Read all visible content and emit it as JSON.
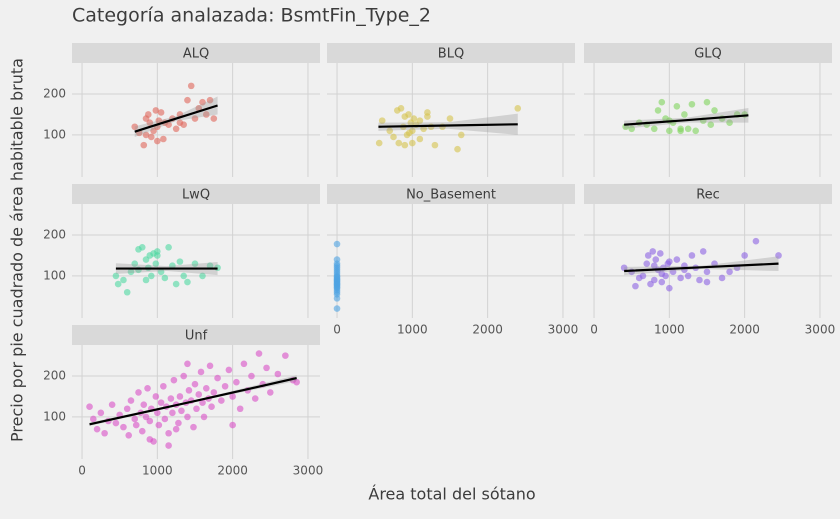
{
  "chart_data": {
    "type": "scatter",
    "title": "Categoría analazada: BsmtFin_Type_2",
    "x_label": "Área total del sótano",
    "y_label": "Precio por pie cuadrado de área habitable bruta",
    "xlim": [
      -133,
      3160
    ],
    "ylim": [
      -3,
      276
    ],
    "xticks": [
      0,
      1000,
      2000,
      3000
    ],
    "yticks": [
      100,
      200
    ],
    "grid": true,
    "panels": [
      {
        "name": "ALQ",
        "color": "#e0665a",
        "x": [
          700,
          760,
          820,
          850,
          880,
          900,
          920,
          950,
          980,
          1000,
          1020,
          1050,
          1080,
          1100,
          1150,
          1200,
          1250,
          1300,
          1350,
          1400,
          1450,
          1500,
          1550,
          1600,
          1650,
          1700,
          1750,
          1000,
          850,
          1300
        ],
        "y": [
          120,
          105,
          75,
          140,
          150,
          130,
          95,
          110,
          160,
          120,
          135,
          155,
          90,
          130,
          125,
          140,
          115,
          150,
          125,
          185,
          220,
          140,
          165,
          180,
          150,
          185,
          140,
          85,
          100,
          130
        ],
        "fit_x": [
          700,
          1250,
          1800
        ],
        "fit_y": [
          108,
          140,
          172
        ],
        "ci_lower": [
          95,
          134,
          150
        ],
        "ci_upper": [
          121,
          146,
          194
        ]
      },
      {
        "name": "BLQ",
        "color": "#d6c34c",
        "x": [
          560,
          600,
          700,
          750,
          800,
          850,
          880,
          900,
          930,
          950,
          980,
          1000,
          1020,
          1050,
          1100,
          1150,
          1200,
          1250,
          1300,
          1400,
          1500,
          1600,
          1650,
          2400,
          900,
          1000,
          1100,
          1200,
          820,
          960
        ],
        "y": [
          80,
          135,
          110,
          95,
          160,
          165,
          120,
          145,
          100,
          150,
          130,
          80,
          140,
          125,
          90,
          115,
          145,
          120,
          75,
          120,
          140,
          65,
          100,
          165,
          75,
          110,
          135,
          155,
          80,
          105
        ],
        "fit_x": [
          550,
          1475,
          2400
        ],
        "fit_y": [
          120,
          123,
          126
        ],
        "ci_lower": [
          110,
          115,
          100
        ],
        "ci_upper": [
          130,
          131,
          152
        ]
      },
      {
        "name": "GLQ",
        "color": "#7ed45c",
        "x": [
          420,
          500,
          600,
          700,
          800,
          900,
          950,
          1000,
          1050,
          1100,
          1150,
          1200,
          1250,
          1300,
          1350,
          1450,
          1500,
          1550,
          1600,
          1700,
          1800,
          1900,
          2000,
          850,
          1000,
          1150
        ],
        "y": [
          120,
          115,
          130,
          125,
          115,
          180,
          140,
          110,
          130,
          170,
          110,
          150,
          115,
          175,
          110,
          135,
          180,
          125,
          160,
          140,
          130,
          150,
          150,
          160,
          135,
          115
        ],
        "fit_x": [
          400,
          1225,
          2050
        ],
        "fit_y": [
          125,
          136,
          148
        ],
        "ci_lower": [
          115,
          130,
          130
        ],
        "ci_upper": [
          135,
          142,
          166
        ]
      },
      {
        "name": "LwQ",
        "color": "#4fd8a2",
        "x": [
          450,
          480,
          550,
          600,
          650,
          700,
          750,
          800,
          850,
          880,
          900,
          920,
          950,
          980,
          1000,
          1050,
          1100,
          1150,
          1200,
          1250,
          1300,
          1350,
          1400,
          1500,
          1600,
          1700,
          1800,
          850,
          1000,
          750
        ],
        "y": [
          100,
          80,
          90,
          60,
          110,
          130,
          165,
          170,
          140,
          120,
          150,
          100,
          155,
          130,
          160,
          110,
          95,
          170,
          125,
          80,
          135,
          100,
          85,
          130,
          100,
          125,
          120,
          90,
          150,
          115
        ],
        "fit_x": [
          450,
          1125,
          1800
        ],
        "fit_y": [
          118,
          118,
          118
        ],
        "ci_lower": [
          105,
          112,
          102
        ],
        "ci_upper": [
          131,
          124,
          134
        ]
      },
      {
        "name": "No_Basement",
        "color": "#4fa3e2",
        "x": [
          0,
          0,
          0,
          0,
          0,
          0,
          0,
          0,
          0,
          0,
          0,
          0,
          0,
          0,
          0,
          0,
          0,
          0,
          0,
          0,
          0,
          0,
          0,
          0,
          0,
          0
        ],
        "y": [
          20,
          45,
          55,
          60,
          65,
          70,
          72,
          75,
          78,
          80,
          82,
          85,
          88,
          90,
          92,
          95,
          98,
          100,
          105,
          110,
          115,
          120,
          125,
          130,
          140,
          178
        ]
      },
      {
        "name": "Rec",
        "color": "#8c62e2",
        "x": [
          400,
          500,
          550,
          600,
          650,
          700,
          720,
          750,
          780,
          800,
          820,
          850,
          880,
          900,
          920,
          950,
          980,
          1000,
          1050,
          1100,
          1150,
          1200,
          1250,
          1300,
          1350,
          1400,
          1450,
          1500,
          1600,
          1700,
          1800,
          1900,
          2000,
          2150,
          2450,
          800,
          900,
          1000,
          1200,
          1500
        ],
        "y": [
          120,
          110,
          75,
          95,
          100,
          130,
          150,
          80,
          160,
          90,
          140,
          115,
          155,
          85,
          120,
          100,
          130,
          70,
          110,
          140,
          95,
          125,
          100,
          150,
          120,
          90,
          160,
          110,
          130,
          95,
          110,
          120,
          150,
          185,
          150,
          125,
          105,
          135,
          115,
          85
        ],
        "fit_x": [
          400,
          1425,
          2450
        ],
        "fit_y": [
          112,
          121,
          130
        ],
        "ci_lower": [
          102,
          117,
          112
        ],
        "ci_upper": [
          122,
          125,
          148
        ]
      },
      {
        "name": "Unf",
        "color": "#d94fc6",
        "x": [
          100,
          150,
          200,
          250,
          300,
          350,
          400,
          450,
          500,
          550,
          600,
          620,
          650,
          700,
          720,
          750,
          780,
          800,
          820,
          850,
          870,
          900,
          920,
          950,
          980,
          1000,
          1020,
          1050,
          1080,
          1100,
          1120,
          1150,
          1180,
          1200,
          1220,
          1250,
          1280,
          1300,
          1320,
          1350,
          1380,
          1400,
          1420,
          1450,
          1480,
          1500,
          1520,
          1550,
          1580,
          1600,
          1620,
          1650,
          1680,
          1700,
          1720,
          1750,
          1800,
          1850,
          1900,
          1950,
          2000,
          2050,
          2100,
          2150,
          2200,
          2250,
          2300,
          2350,
          2400,
          2450,
          2500,
          2600,
          2700,
          2800,
          2850,
          1150,
          900,
          1250,
          2000,
          1400
        ],
        "y": [
          125,
          95,
          70,
          110,
          60,
          90,
          130,
          85,
          105,
          75,
          120,
          55,
          140,
          95,
          80,
          160,
          110,
          65,
          130,
          100,
          170,
          90,
          120,
          40,
          150,
          110,
          80,
          135,
          175,
          95,
          125,
          60,
          145,
          110,
          190,
          130,
          85,
          150,
          115,
          200,
          135,
          100,
          165,
          140,
          75,
          180,
          120,
          155,
          210,
          135,
          100,
          170,
          145,
          225,
          125,
          160,
          195,
          140,
          175,
          215,
          150,
          185,
          120,
          230,
          165,
          200,
          145,
          255,
          180,
          220,
          160,
          205,
          250,
          190,
          185,
          30,
          45,
          70,
          80,
          230
        ],
        "fit_x": [
          100,
          1475,
          2850
        ],
        "fit_y": [
          82,
          138,
          195
        ],
        "ci_lower": [
          78,
          136,
          188
        ],
        "ci_upper": [
          86,
          140,
          202
        ]
      }
    ]
  }
}
